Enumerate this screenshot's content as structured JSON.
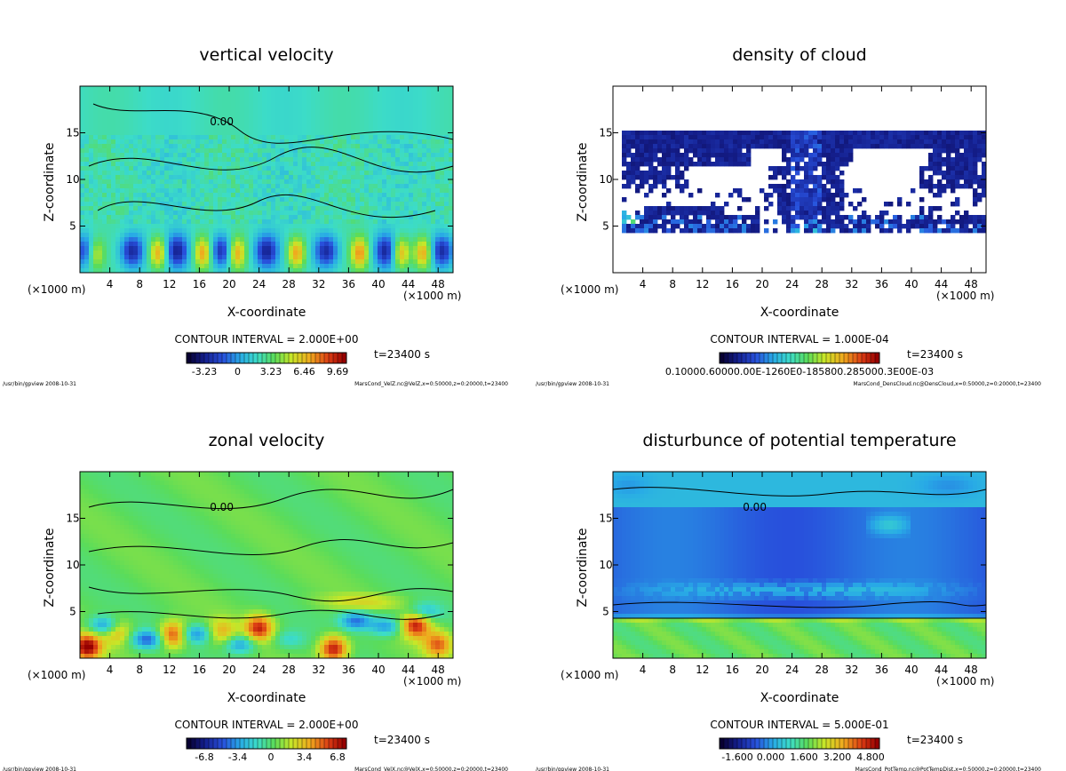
{
  "chart_data": [
    {
      "type": "heatmap",
      "title": "vertical velocity",
      "xlabel": "X-coordinate",
      "ylabel": "Z-coordinate",
      "x_unit": "(×1000 m)",
      "x_ticks": [
        "4",
        "8",
        "12",
        "16",
        "20",
        "24",
        "28",
        "32",
        "36",
        "40",
        "44",
        "48"
      ],
      "y_ticks": [
        "5",
        "10",
        "15"
      ],
      "xlim": [
        0,
        50
      ],
      "ylim": [
        0,
        20
      ],
      "contour_interval": "CONTOUR INTERVAL = 2.000E+00",
      "time": "t=23400 s",
      "colorbar_labels": [
        "-3.23",
        "0",
        "3.23",
        "6.46",
        "9.69"
      ],
      "contour_labels": [
        "0.00"
      ],
      "footer_left": "/usr/bin/gpview   2008-10-31",
      "footer_right": "MarsCond_VelZ.nc@VelZ,x=0:50000,z=0:20000,t=23400",
      "palette": "rainbow",
      "scheme": "velz"
    },
    {
      "type": "heatmap",
      "title": "density of cloud",
      "xlabel": "X-coordinate",
      "ylabel": "Z-coordinate",
      "x_unit": "(×1000 m)",
      "x_ticks": [
        "4",
        "8",
        "12",
        "16",
        "20",
        "24",
        "28",
        "32",
        "36",
        "40",
        "44",
        "48"
      ],
      "y_ticks": [
        "5",
        "10",
        "15"
      ],
      "xlim": [
        0,
        50
      ],
      "ylim": [
        0,
        20
      ],
      "contour_interval": "CONTOUR INTERVAL = 1.000E-04",
      "time": "t=23400 s",
      "colorbar_labels": [
        "0.10000.60000.00E-1260E0-185800.285000.3E00E-03"
      ],
      "contour_labels": [],
      "footer_left": "/usr/bin/gpview   2008-10-31",
      "footer_right": "MarsCond_DensCloud.nc@DensCloud,x=0:50000,z=0:20000,t=23400",
      "palette": "rainbow",
      "scheme": "cloud"
    },
    {
      "type": "heatmap",
      "title": "zonal velocity",
      "xlabel": "X-coordinate",
      "ylabel": "Z-coordinate",
      "x_unit": "(×1000 m)",
      "x_ticks": [
        "4",
        "8",
        "12",
        "16",
        "20",
        "24",
        "28",
        "32",
        "36",
        "40",
        "44",
        "48"
      ],
      "y_ticks": [
        "5",
        "10",
        "15"
      ],
      "xlim": [
        0,
        50
      ],
      "ylim": [
        0,
        20
      ],
      "contour_interval": "CONTOUR INTERVAL = 2.000E+00",
      "time": "t=23400 s",
      "colorbar_labels": [
        "-6.8",
        "-3.4",
        "0",
        "3.4",
        "6.8"
      ],
      "contour_labels": [
        "0.00"
      ],
      "footer_left": "/usr/bin/gpview   2008-10-31",
      "footer_right": "MarsCond_VelX.nc@VelX,x=0:50000,z=0:20000,t=23400",
      "palette": "rainbow",
      "scheme": "velx"
    },
    {
      "type": "heatmap",
      "title": "disturbunce of potential temperature",
      "xlabel": "X-coordinate",
      "ylabel": "Z-coordinate",
      "x_unit": "(×1000 m)",
      "x_ticks": [
        "4",
        "8",
        "12",
        "16",
        "20",
        "24",
        "28",
        "32",
        "36",
        "40",
        "44",
        "48"
      ],
      "y_ticks": [
        "5",
        "10",
        "15"
      ],
      "xlim": [
        0,
        50
      ],
      "ylim": [
        0,
        20
      ],
      "contour_interval": "CONTOUR INTERVAL = 5.000E-01",
      "time": "t=23400 s",
      "colorbar_labels": [
        "-1.600",
        "0.000",
        "1.600",
        "3.200",
        "4.800"
      ],
      "contour_labels": [
        "0.00"
      ],
      "footer_left": "/usr/bin/gpview   2008-10-31",
      "footer_right": "MarsCond_PotTemp.nc@PotTempDist,x=0:50000,z=0:20000,t=23400",
      "palette": "rainbow",
      "scheme": "ptemp"
    }
  ]
}
